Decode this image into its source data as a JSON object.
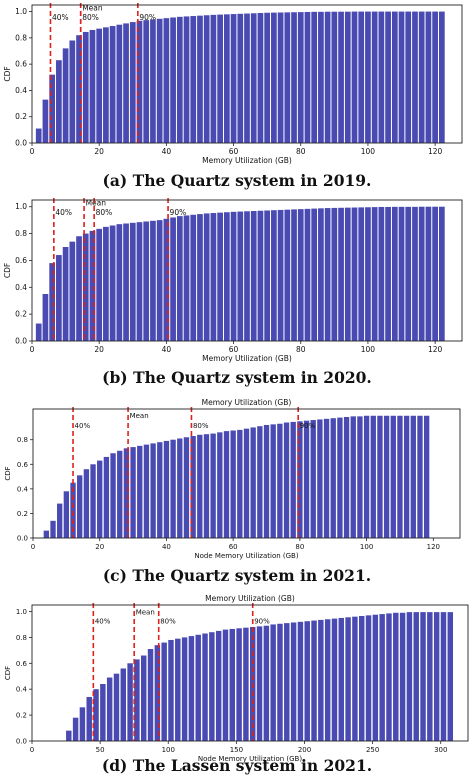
{
  "bar_color": "#4a4ab3",
  "marker_color": "#e0201a",
  "chart_data": [
    {
      "type": "bar",
      "caption_label": "(a)",
      "caption_text": "The Quartz system in 2019.",
      "title": "",
      "xlabel": "Memory Utilization (GB)",
      "ylabel": "CDF",
      "xlim": [
        0,
        128
      ],
      "ylim": [
        0,
        1.05
      ],
      "xticks": [
        0,
        20,
        40,
        60,
        80,
        100,
        120
      ],
      "yticks": [
        "0.0",
        "0.2",
        "0.4",
        "0.6",
        "0.8",
        "1.0"
      ],
      "bar_start": 2,
      "bar_step": 2,
      "bar_width": 1.7,
      "values": [
        0.11,
        0.33,
        0.52,
        0.63,
        0.72,
        0.78,
        0.82,
        0.845,
        0.86,
        0.87,
        0.88,
        0.89,
        0.9,
        0.91,
        0.92,
        0.93,
        0.935,
        0.94,
        0.945,
        0.95,
        0.955,
        0.96,
        0.963,
        0.966,
        0.969,
        0.972,
        0.975,
        0.977,
        0.979,
        0.981,
        0.983,
        0.985,
        0.987,
        0.989,
        0.991,
        0.992,
        0.993,
        0.994,
        0.995,
        0.996,
        0.997,
        0.998,
        0.998,
        0.999,
        0.999,
        0.999,
        0.999,
        1.0,
        1.0,
        1.0,
        1.0,
        1.0,
        1.0,
        1.0,
        1.0,
        1.0,
        1.0,
        1.0,
        1.0,
        1.0,
        1.0
      ],
      "markers": [
        {
          "x": 5.5,
          "label": "40%",
          "label_y": 0.96
        },
        {
          "x": 14.5,
          "label": "Mean",
          "label_y": 1.03
        },
        {
          "x": 14.5,
          "label": "80%",
          "label_y": 0.96
        },
        {
          "x": 31.5,
          "label": "90%",
          "label_y": 0.96
        }
      ]
    },
    {
      "type": "bar",
      "caption_label": "(b)",
      "caption_text": "The Quartz system in 2020.",
      "title": "",
      "xlabel": "Memory Utilization (GB)",
      "ylabel": "CDF",
      "xlim": [
        0,
        128
      ],
      "ylim": [
        0,
        1.05
      ],
      "xticks": [
        0,
        20,
        40,
        60,
        80,
        100,
        120
      ],
      "yticks": [
        "0.0",
        "0.2",
        "0.4",
        "0.6",
        "0.8",
        "1.0"
      ],
      "bar_start": 2,
      "bar_step": 2,
      "bar_width": 1.7,
      "values": [
        0.13,
        0.35,
        0.58,
        0.64,
        0.7,
        0.74,
        0.78,
        0.8,
        0.82,
        0.835,
        0.85,
        0.86,
        0.87,
        0.875,
        0.88,
        0.885,
        0.89,
        0.895,
        0.9,
        0.91,
        0.92,
        0.93,
        0.935,
        0.94,
        0.945,
        0.95,
        0.953,
        0.956,
        0.959,
        0.962,
        0.964,
        0.966,
        0.968,
        0.97,
        0.972,
        0.974,
        0.976,
        0.978,
        0.98,
        0.982,
        0.984,
        0.986,
        0.988,
        0.99,
        0.991,
        0.992,
        0.993,
        0.994,
        0.995,
        0.996,
        0.997,
        0.998,
        0.998,
        0.999,
        0.999,
        0.999,
        0.999,
        1.0,
        1.0,
        1.0,
        1.0
      ],
      "markers": [
        {
          "x": 6.5,
          "label": "40%",
          "label_y": 0.96
        },
        {
          "x": 15.5,
          "label": "Mean",
          "label_y": 1.03
        },
        {
          "x": 18.5,
          "label": "80%",
          "label_y": 0.96
        },
        {
          "x": 40.5,
          "label": "90%",
          "label_y": 0.96
        }
      ]
    },
    {
      "type": "bar",
      "caption_label": "(c)",
      "caption_text": "The Quartz system in 2021.",
      "title": "Memory Utilization (GB)",
      "xlabel": "Node Memory Utilization (GB)",
      "ylabel": "CDF",
      "xlim": [
        0,
        128
      ],
      "ylim": [
        0,
        1.05
      ],
      "xticks": [
        0,
        20,
        40,
        60,
        80,
        100,
        120
      ],
      "yticks": [
        "0.0",
        "0.2",
        "0.4",
        "0.6",
        "0.8"
      ],
      "bar_start": 4,
      "bar_step": 2,
      "bar_width": 1.6,
      "values": [
        0.06,
        0.14,
        0.28,
        0.38,
        0.45,
        0.51,
        0.56,
        0.6,
        0.63,
        0.66,
        0.69,
        0.71,
        0.73,
        0.74,
        0.75,
        0.76,
        0.77,
        0.78,
        0.79,
        0.8,
        0.81,
        0.82,
        0.83,
        0.84,
        0.845,
        0.85,
        0.86,
        0.87,
        0.875,
        0.88,
        0.89,
        0.9,
        0.91,
        0.92,
        0.925,
        0.93,
        0.94,
        0.945,
        0.95,
        0.955,
        0.96,
        0.965,
        0.97,
        0.975,
        0.98,
        0.985,
        0.99,
        0.99,
        0.995,
        0.995,
        0.995,
        0.995,
        0.995,
        0.995,
        0.995,
        0.995,
        0.995,
        0.995
      ],
      "markers": [
        {
          "x": 12,
          "label": "40%",
          "label_y": 0.92
        },
        {
          "x": 28.5,
          "label": "Mean",
          "label_y": 1.0
        },
        {
          "x": 47.5,
          "label": "80%",
          "label_y": 0.92
        },
        {
          "x": 79.5,
          "label": "90%",
          "label_y": 0.92
        }
      ]
    },
    {
      "type": "bar",
      "caption_label": "(d)",
      "caption_text": "The Lassen system in 2021.",
      "title": "Memory Utilization (GB)",
      "xlabel": "Node Memory Utilization (GB)",
      "ylabel": "CDF",
      "xlim": [
        0,
        320
      ],
      "ylim": [
        0,
        1.05
      ],
      "xticks": [
        0,
        50,
        100,
        150,
        200,
        250,
        300
      ],
      "yticks": [
        "0.0",
        "0.2",
        "0.4",
        "0.6",
        "0.8",
        "1.0"
      ],
      "bar_start": 27,
      "bar_step": 5,
      "bar_width": 4,
      "values": [
        0.08,
        0.18,
        0.26,
        0.34,
        0.4,
        0.44,
        0.49,
        0.52,
        0.56,
        0.6,
        0.63,
        0.66,
        0.71,
        0.74,
        0.76,
        0.78,
        0.79,
        0.8,
        0.81,
        0.82,
        0.83,
        0.84,
        0.85,
        0.86,
        0.865,
        0.87,
        0.875,
        0.88,
        0.885,
        0.89,
        0.9,
        0.905,
        0.91,
        0.915,
        0.92,
        0.925,
        0.93,
        0.935,
        0.94,
        0.945,
        0.95,
        0.955,
        0.96,
        0.965,
        0.97,
        0.975,
        0.98,
        0.985,
        0.99,
        0.99,
        0.995,
        0.995,
        0.995,
        0.995,
        0.995,
        0.995,
        0.995
      ],
      "markers": [
        {
          "x": 45,
          "label": "40%",
          "label_y": 0.93
        },
        {
          "x": 75,
          "label": "Mean",
          "label_y": 1.0
        },
        {
          "x": 93,
          "label": "80%",
          "label_y": 0.93
        },
        {
          "x": 162,
          "label": "90%",
          "label_y": 0.93
        }
      ]
    }
  ]
}
